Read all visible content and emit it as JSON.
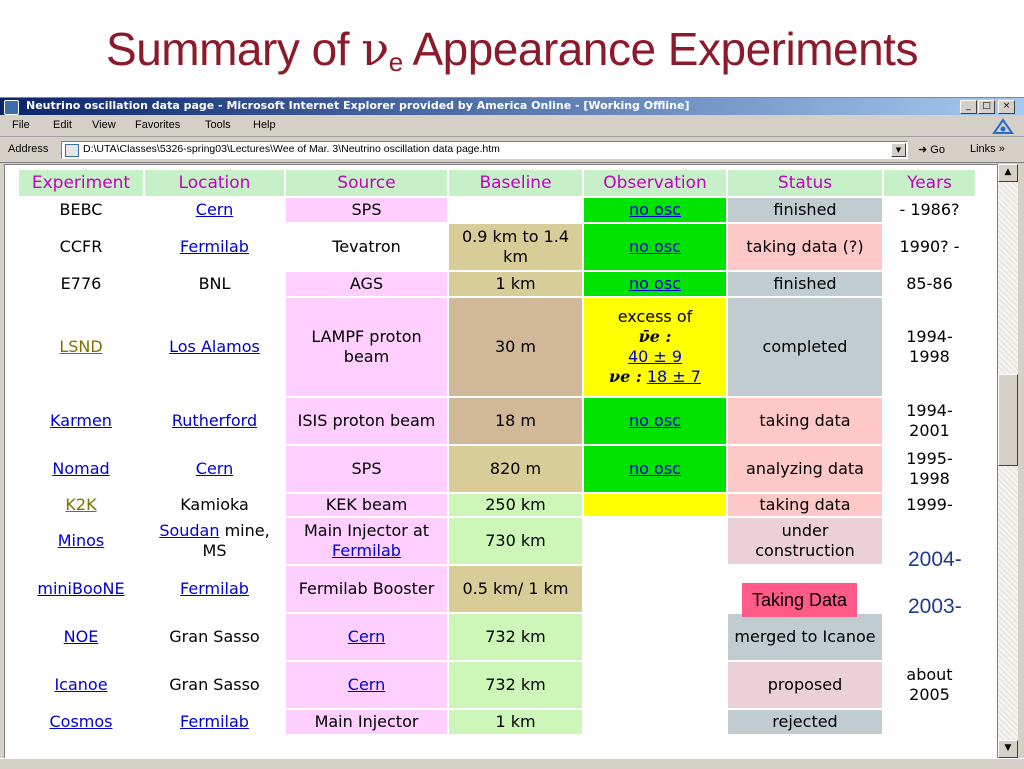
{
  "slide": {
    "title_pre": "Summary of ",
    "title_nu": "ν",
    "title_sub": "e",
    "title_post": " Appearance Experiments"
  },
  "window": {
    "title": "Neutrino oscillation data page - Microsoft Internet Explorer provided by America Online - [Working Offline]",
    "controls": {
      "minimize": "_",
      "maximize": "□",
      "close": "×"
    }
  },
  "menu": [
    "File",
    "Edit",
    "View",
    "Favorites",
    "Tools",
    "Help"
  ],
  "address": {
    "label": "Address",
    "value": "D:\\UTA\\Classes\\5326-spring03\\Lectures\\Wee of Mar. 3\\Neutrino oscillation data page.htm",
    "go": "Go",
    "links": "Links"
  },
  "table": {
    "headers": [
      "Experiment",
      "Location",
      "Source",
      "Baseline",
      "Observation",
      "Status",
      "Years"
    ],
    "rows": [
      {
        "experiment": "BEBC",
        "location": "Cern",
        "source": "SPS",
        "baseline": "",
        "observation": "no osc",
        "status": "finished",
        "years": "- 1986?"
      },
      {
        "experiment": "CCFR",
        "location": "Fermilab",
        "source": "Tevatron",
        "baseline": "0.9 km to 1.4 km",
        "observation": "no osc",
        "status": "taking data (?)",
        "years": "1990? -"
      },
      {
        "experiment": "E776",
        "location": "BNL",
        "source": "AGS",
        "baseline": "1 km",
        "observation": "no osc",
        "status": "finished",
        "years": "85-86"
      },
      {
        "experiment": "LSND",
        "location": "Los Alamos",
        "source": "LAMPF proton beam",
        "baseline": "30 m",
        "observation_lines": [
          "excess of",
          "ν̄e :",
          "40 ± 9",
          "νe :",
          "18 ± 7"
        ],
        "status": "completed",
        "years": "1994-1998"
      },
      {
        "experiment": "Karmen",
        "location": "Rutherford",
        "source": "ISIS proton beam",
        "baseline": "18 m",
        "observation": "no osc",
        "status": "taking data",
        "years": "1994-2001"
      },
      {
        "experiment": "Nomad",
        "location": "Cern",
        "source": "SPS",
        "baseline": "820 m",
        "observation": "no osc",
        "status": "analyzing data",
        "years": "1995-1998"
      },
      {
        "experiment": "K2K",
        "location": "Kamioka",
        "source": "KEK beam",
        "baseline": "250 km",
        "observation": "",
        "status": "taking data",
        "years": "1999-"
      },
      {
        "experiment": "Minos",
        "location_link": "Soudan",
        "location_rest": " mine, MS",
        "source_pre": "Main Injector at",
        "source_link": "Fermilab",
        "baseline": "730 km",
        "observation": "",
        "status": "under construction",
        "years": ""
      },
      {
        "experiment": "miniBooNE",
        "location": "Fermilab",
        "source": "Fermilab Booster",
        "baseline": "0.5 km/ 1 km",
        "observation": "",
        "status": "",
        "years": ""
      },
      {
        "experiment": "NOE",
        "location": "Gran Sasso",
        "source": "Cern",
        "baseline": "732 km",
        "observation": "",
        "status": "merged to Icanoe",
        "years": ""
      },
      {
        "experiment": "Icanoe",
        "location": "Gran Sasso",
        "source": "Cern",
        "baseline": "732 km",
        "observation": "",
        "status": "proposed",
        "years": "about 2005"
      },
      {
        "experiment": "Cosmos",
        "location": "Fermilab",
        "source": "Main Injector",
        "baseline": "1 km",
        "observation": "",
        "status": "rejected",
        "years": ""
      }
    ]
  },
  "overlays": {
    "minos_year": "2004-",
    "miniboone_status": "Taking Data",
    "miniboone_year": "2003-"
  },
  "colors": {
    "title": "#8b1a2b",
    "header_text": "#c000c0",
    "header_bg": "#c8f0c8",
    "no_osc_bg": "#00e200",
    "excess_bg": "#ffff00",
    "overlay_status_bg": "#ff5a88"
  }
}
